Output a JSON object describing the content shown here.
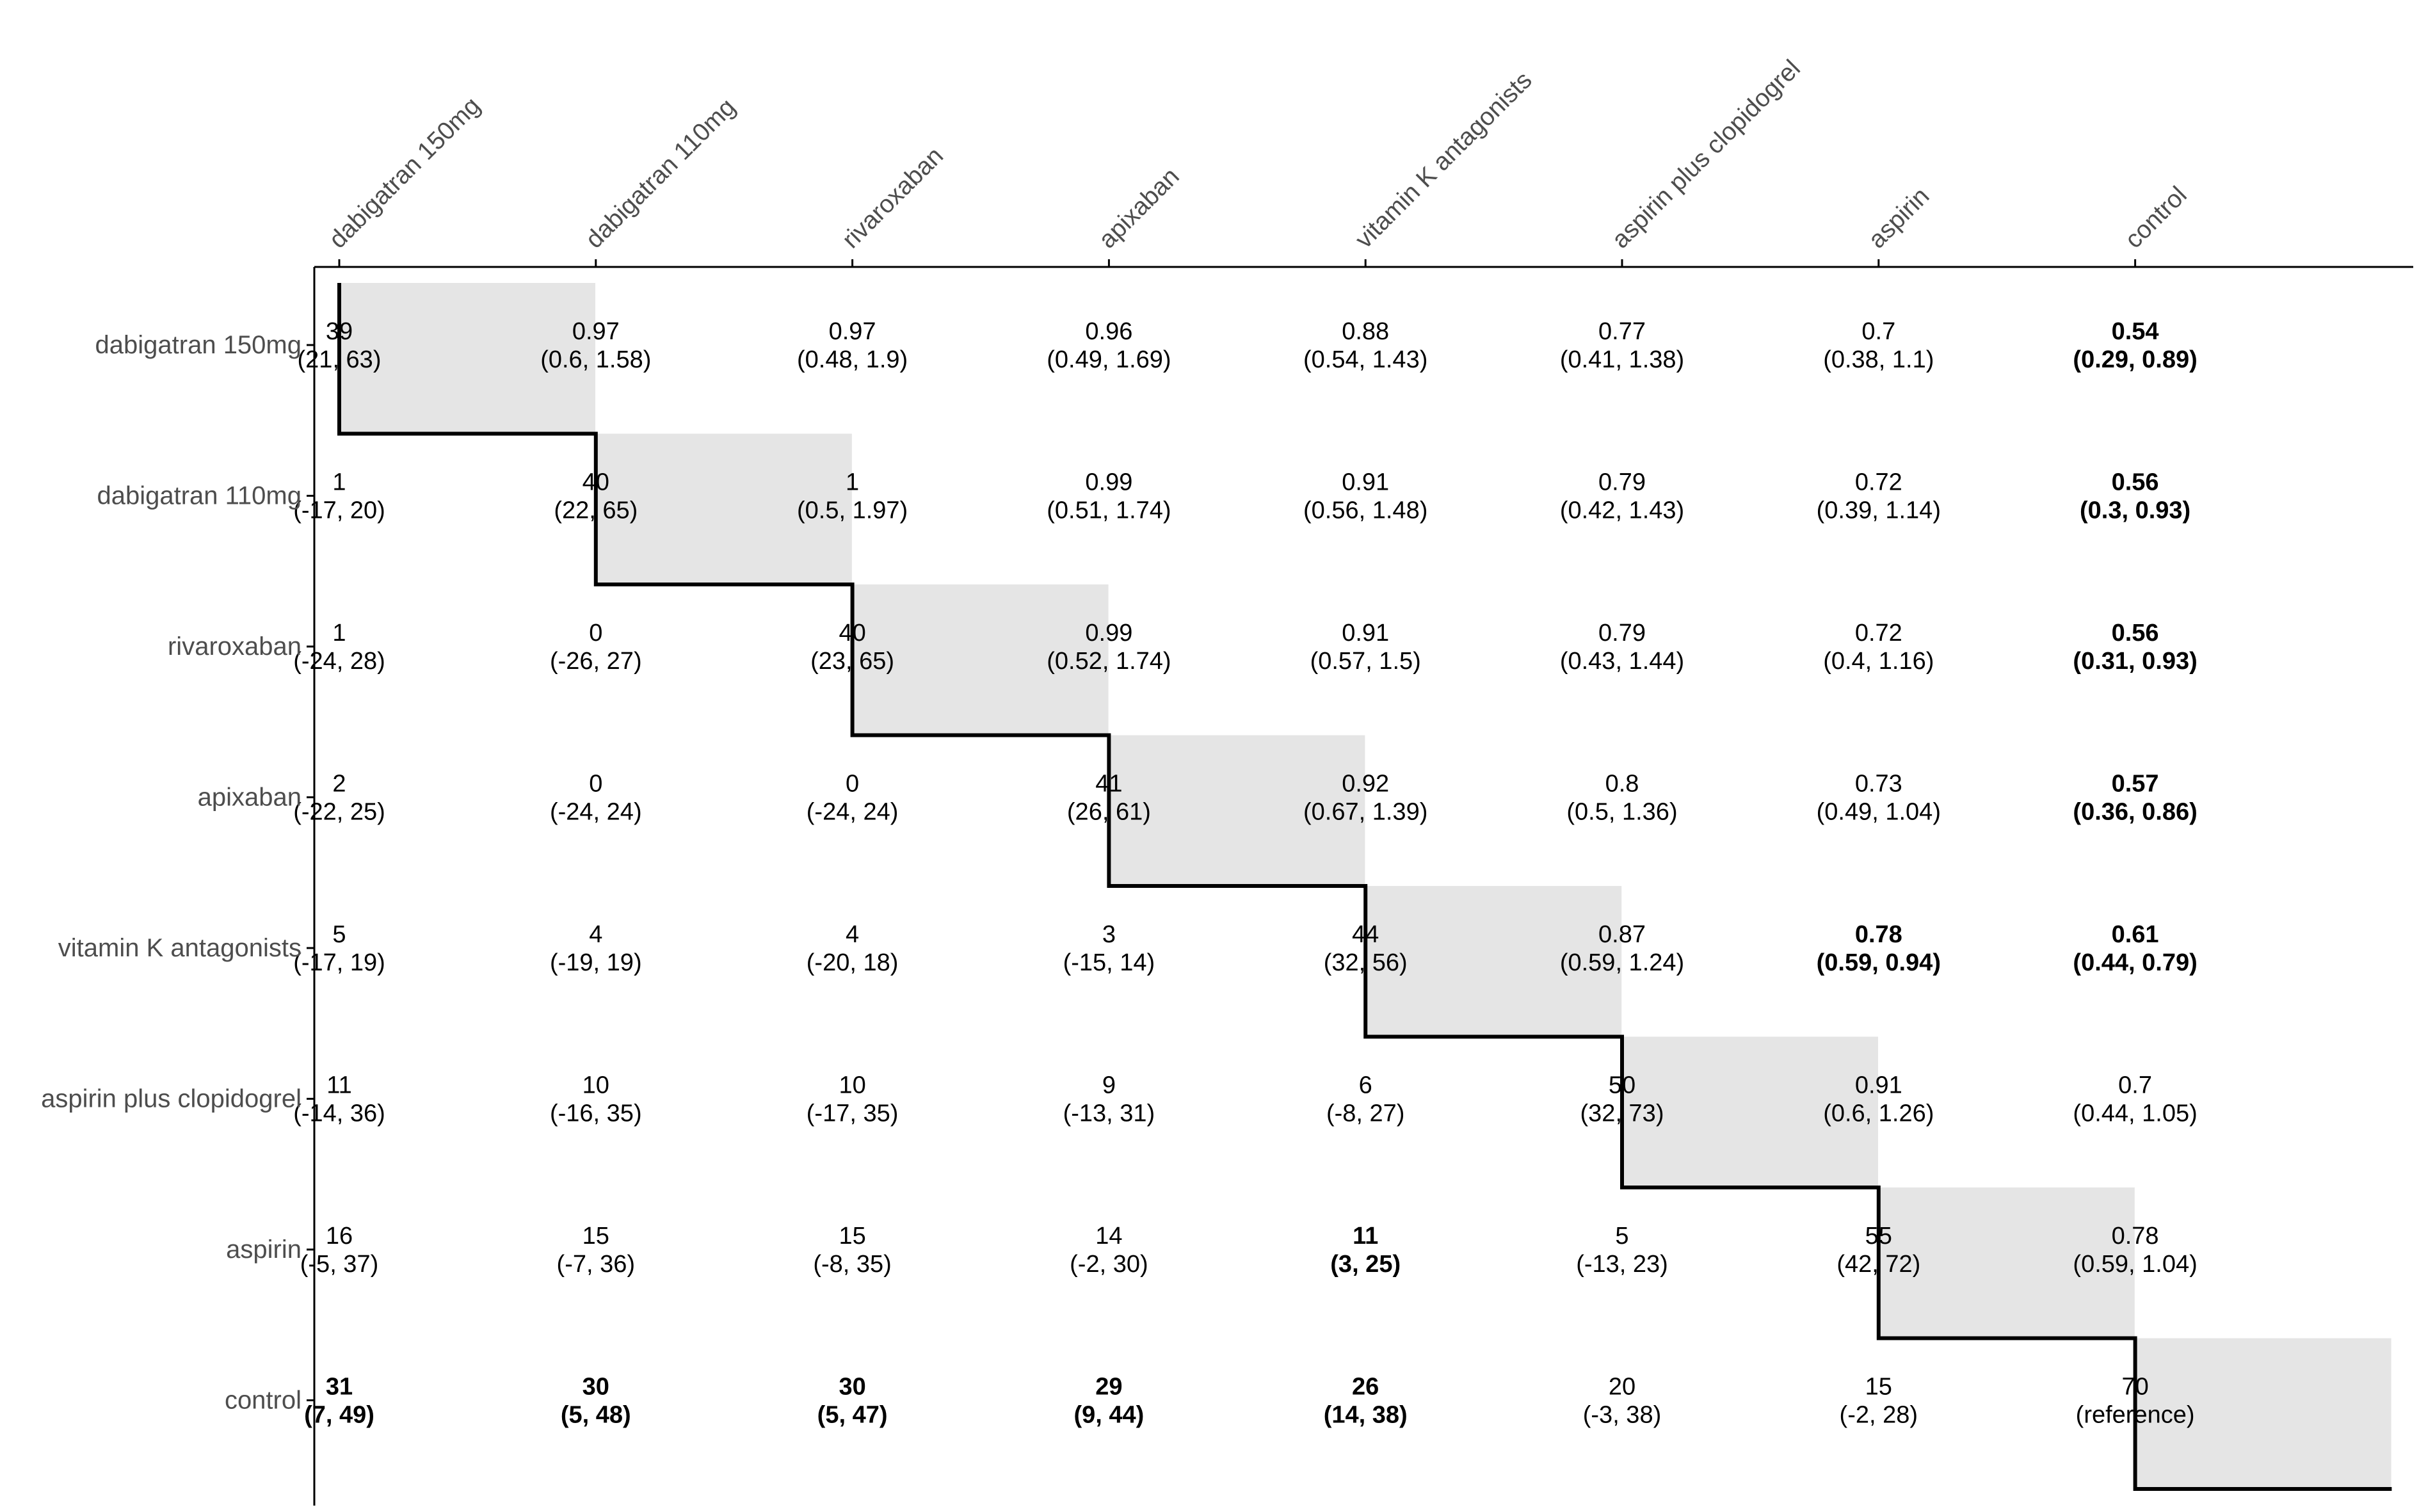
{
  "chart_data": {
    "type": "table",
    "treatments": [
      "dabigatran 150mg",
      "dabigatran 110mg",
      "rivaroxaban",
      "apixaban",
      "vitamin K antagonists",
      "aspirin plus clopidogrel",
      "aspirin",
      "control"
    ],
    "cells": [
      [
        {
          "value": "39",
          "ci": "(21, 63)",
          "bold": false,
          "diagonal": true
        },
        {
          "value": "0.97",
          "ci": "(0.6, 1.58)",
          "bold": false
        },
        {
          "value": "0.97",
          "ci": "(0.48, 1.9)",
          "bold": false
        },
        {
          "value": "0.96",
          "ci": "(0.49, 1.69)",
          "bold": false
        },
        {
          "value": "0.88",
          "ci": "(0.54, 1.43)",
          "bold": false
        },
        {
          "value": "0.77",
          "ci": "(0.41, 1.38)",
          "bold": false
        },
        {
          "value": "0.7",
          "ci": "(0.38, 1.1)",
          "bold": false
        },
        {
          "value": "0.54",
          "ci": "(0.29, 0.89)",
          "bold": true
        }
      ],
      [
        {
          "value": "1",
          "ci": "(-17, 20)",
          "bold": false
        },
        {
          "value": "40",
          "ci": "(22, 65)",
          "bold": false,
          "diagonal": true
        },
        {
          "value": "1",
          "ci": "(0.5, 1.97)",
          "bold": false
        },
        {
          "value": "0.99",
          "ci": "(0.51, 1.74)",
          "bold": false
        },
        {
          "value": "0.91",
          "ci": "(0.56, 1.48)",
          "bold": false
        },
        {
          "value": "0.79",
          "ci": "(0.42, 1.43)",
          "bold": false
        },
        {
          "value": "0.72",
          "ci": "(0.39, 1.14)",
          "bold": false
        },
        {
          "value": "0.56",
          "ci": "(0.3, 0.93)",
          "bold": true
        }
      ],
      [
        {
          "value": "1",
          "ci": "(-24, 28)",
          "bold": false
        },
        {
          "value": "0",
          "ci": "(-26, 27)",
          "bold": false
        },
        {
          "value": "40",
          "ci": "(23, 65)",
          "bold": false,
          "diagonal": true
        },
        {
          "value": "0.99",
          "ci": "(0.52, 1.74)",
          "bold": false
        },
        {
          "value": "0.91",
          "ci": "(0.57, 1.5)",
          "bold": false
        },
        {
          "value": "0.79",
          "ci": "(0.43, 1.44)",
          "bold": false
        },
        {
          "value": "0.72",
          "ci": "(0.4, 1.16)",
          "bold": false
        },
        {
          "value": "0.56",
          "ci": "(0.31, 0.93)",
          "bold": true
        }
      ],
      [
        {
          "value": "2",
          "ci": "(-22, 25)",
          "bold": false
        },
        {
          "value": "0",
          "ci": "(-24, 24)",
          "bold": false
        },
        {
          "value": "0",
          "ci": "(-24, 24)",
          "bold": false
        },
        {
          "value": "41",
          "ci": "(26, 61)",
          "bold": false,
          "diagonal": true
        },
        {
          "value": "0.92",
          "ci": "(0.67, 1.39)",
          "bold": false
        },
        {
          "value": "0.8",
          "ci": "(0.5, 1.36)",
          "bold": false
        },
        {
          "value": "0.73",
          "ci": "(0.49, 1.04)",
          "bold": false
        },
        {
          "value": "0.57",
          "ci": "(0.36, 0.86)",
          "bold": true
        }
      ],
      [
        {
          "value": "5",
          "ci": "(-17, 19)",
          "bold": false
        },
        {
          "value": "4",
          "ci": "(-19, 19)",
          "bold": false
        },
        {
          "value": "4",
          "ci": "(-20, 18)",
          "bold": false
        },
        {
          "value": "3",
          "ci": "(-15, 14)",
          "bold": false
        },
        {
          "value": "44",
          "ci": "(32, 56)",
          "bold": false,
          "diagonal": true
        },
        {
          "value": "0.87",
          "ci": "(0.59, 1.24)",
          "bold": false
        },
        {
          "value": "0.78",
          "ci": "(0.59, 0.94)",
          "bold": true
        },
        {
          "value": "0.61",
          "ci": "(0.44, 0.79)",
          "bold": true
        }
      ],
      [
        {
          "value": "11",
          "ci": "(-14, 36)",
          "bold": false
        },
        {
          "value": "10",
          "ci": "(-16, 35)",
          "bold": false
        },
        {
          "value": "10",
          "ci": "(-17, 35)",
          "bold": false
        },
        {
          "value": "9",
          "ci": "(-13, 31)",
          "bold": false
        },
        {
          "value": "6",
          "ci": "(-8, 27)",
          "bold": false
        },
        {
          "value": "50",
          "ci": "(32, 73)",
          "bold": false,
          "diagonal": true
        },
        {
          "value": "0.91",
          "ci": "(0.6, 1.26)",
          "bold": false
        },
        {
          "value": "0.7",
          "ci": "(0.44, 1.05)",
          "bold": false
        }
      ],
      [
        {
          "value": "16",
          "ci": "(-5, 37)",
          "bold": false
        },
        {
          "value": "15",
          "ci": "(-7, 36)",
          "bold": false
        },
        {
          "value": "15",
          "ci": "(-8, 35)",
          "bold": false
        },
        {
          "value": "14",
          "ci": "(-2, 30)",
          "bold": false
        },
        {
          "value": "11",
          "ci": "(3, 25)",
          "bold": true
        },
        {
          "value": "5",
          "ci": "(-13, 23)",
          "bold": false
        },
        {
          "value": "55",
          "ci": "(42, 72)",
          "bold": false,
          "diagonal": true
        },
        {
          "value": "0.78",
          "ci": "(0.59, 1.04)",
          "bold": false
        }
      ],
      [
        {
          "value": "31",
          "ci": "(7, 49)",
          "bold": true
        },
        {
          "value": "30",
          "ci": "(5, 48)",
          "bold": true
        },
        {
          "value": "30",
          "ci": "(5, 47)",
          "bold": true
        },
        {
          "value": "29",
          "ci": "(9, 44)",
          "bold": true
        },
        {
          "value": "26",
          "ci": "(14, 38)",
          "bold": true
        },
        {
          "value": "20",
          "ci": "(-3, 38)",
          "bold": false
        },
        {
          "value": "15",
          "ci": "(-2, 28)",
          "bold": false
        },
        {
          "value": "70",
          "ci": "(reference)",
          "bold": false,
          "diagonal": true
        }
      ]
    ],
    "colors": {
      "diagonal_fill": "#e5e5e5",
      "text": "#000000",
      "axis_label": "#4d4d4d",
      "axis_line": "#000000",
      "step_line": "#000000"
    }
  }
}
